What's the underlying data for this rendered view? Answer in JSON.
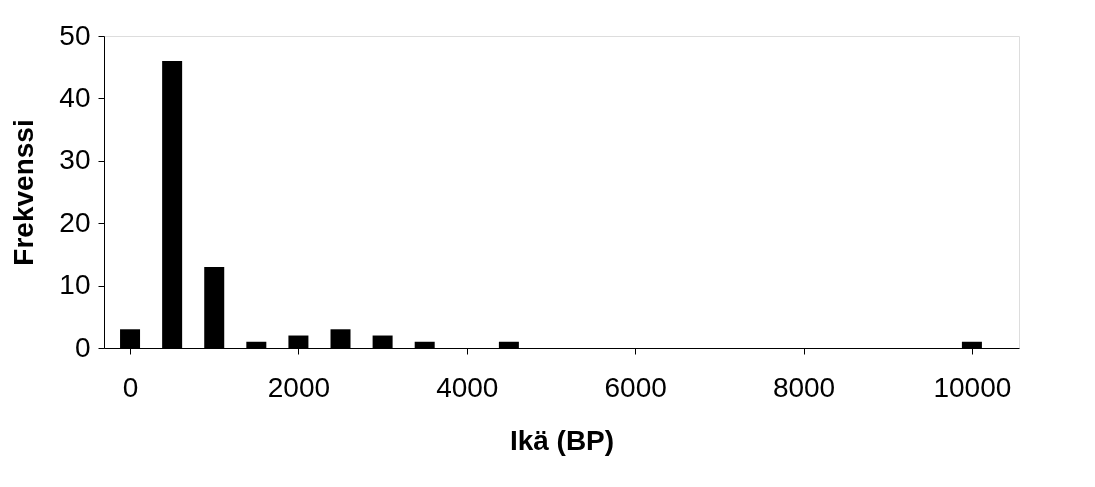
{
  "chart_data": {
    "type": "bar",
    "xlabel": "Ikä (BP)",
    "ylabel": "Frekvenssi",
    "x": [
      0,
      500,
      1000,
      1500,
      2000,
      2500,
      3000,
      3500,
      4500,
      10000
    ],
    "values": [
      3,
      46,
      13,
      1,
      2,
      3,
      2,
      1,
      1,
      1
    ],
    "color": "#000000",
    "xlim": [
      -250,
      10500
    ],
    "xticks": [
      0,
      2000,
      4000,
      6000,
      8000,
      10000
    ],
    "ylim": [
      0,
      50
    ],
    "yticks": [
      0,
      10,
      20,
      30,
      40,
      50
    ],
    "grid": false
  }
}
